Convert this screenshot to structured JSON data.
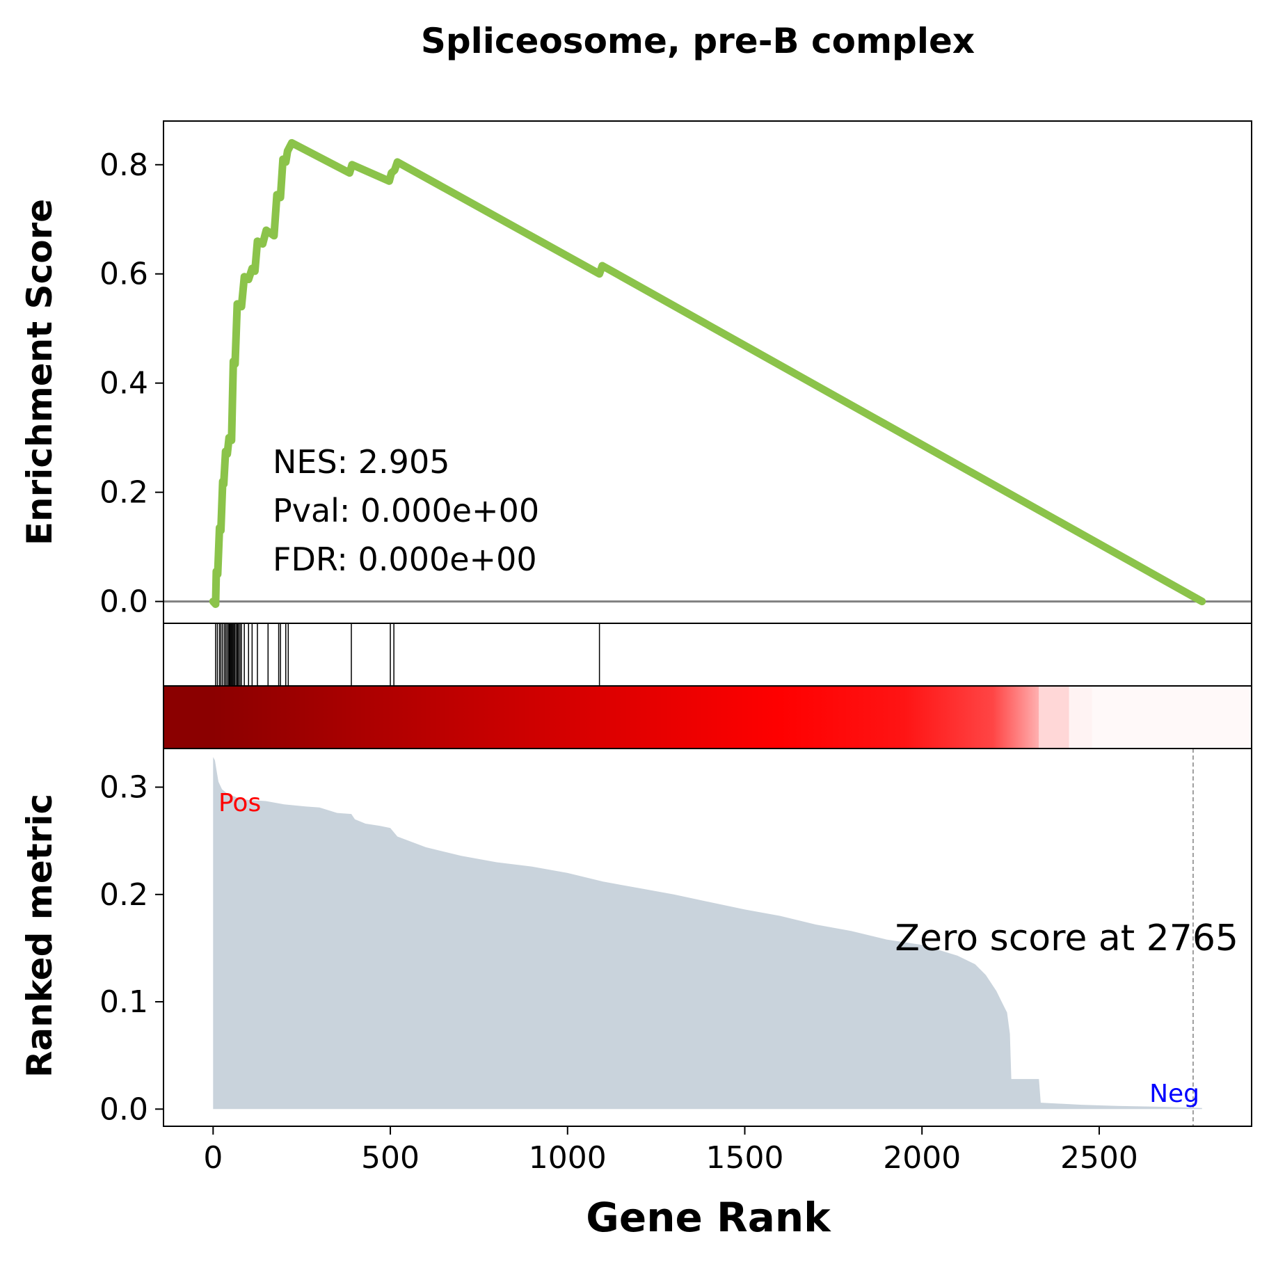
{
  "chart_data": {
    "type": "line",
    "title": "Spliceosome, pre-B complex",
    "xlabel": "Gene Rank",
    "ylabel_top": "Enrichment Score",
    "ylabel_bottom": "Ranked metric",
    "xlim": [
      -140,
      2930
    ],
    "x_ticks": [
      0,
      500,
      1000,
      1500,
      2000,
      2500
    ],
    "es_ylim": [
      -0.04,
      0.88
    ],
    "es_ticks": [
      0.0,
      0.2,
      0.4,
      0.6,
      0.8
    ],
    "metric_ylim": [
      -0.016,
      0.336
    ],
    "metric_ticks": [
      0.0,
      0.1,
      0.2,
      0.3
    ],
    "tick_decimals": 1,
    "stats": {
      "nes": "NES: 2.905",
      "pval": "Pval: 0.000e+00",
      "fdr": "FDR: 0.000e+00"
    },
    "zero_score_label": "Zero score at 2765",
    "zero_score_rank": 2765,
    "pos_label": "Pos",
    "neg_label": "Neg",
    "colors": {
      "es_line": "#8BC34A",
      "metric_fill": "#C9D3DC",
      "zero_line": "#808080",
      "pos_label": "#FF0000",
      "neg_label": "#0000FF",
      "dashed": "#808080"
    },
    "es_curve": {
      "x": [
        0,
        7,
        9,
        13,
        18,
        22,
        27,
        30,
        35,
        40,
        45,
        52,
        57,
        62,
        68,
        80,
        88,
        100,
        110,
        118,
        125,
        140,
        150,
        172,
        180,
        190,
        197,
        205,
        210,
        222,
        385,
        392,
        497,
        503,
        512,
        520,
        1090,
        1098,
        2790
      ],
      "y": [
        0.0,
        -0.005,
        0.055,
        0.05,
        0.135,
        0.13,
        0.22,
        0.215,
        0.275,
        0.27,
        0.3,
        0.295,
        0.44,
        0.435,
        0.545,
        0.54,
        0.595,
        0.59,
        0.61,
        0.605,
        0.66,
        0.655,
        0.68,
        0.67,
        0.745,
        0.74,
        0.81,
        0.805,
        0.825,
        0.84,
        0.785,
        0.8,
        0.77,
        0.785,
        0.79,
        0.805,
        0.6,
        0.615,
        0.0
      ]
    },
    "hits": [
      7,
      12,
      18,
      22,
      27,
      32,
      36,
      40,
      44,
      47,
      50,
      53,
      56,
      59,
      62,
      66,
      69,
      72,
      76,
      80,
      88,
      100,
      110,
      125,
      155,
      185,
      190,
      205,
      212,
      390,
      500,
      510,
      1090
    ],
    "heatmap": {
      "stops": [
        {
          "x": 0,
          "color": "#8B0000"
        },
        {
          "x": 700,
          "color": "#C00000"
        },
        {
          "x": 1600,
          "color": "#FF0000"
        },
        {
          "x": 1950,
          "color": "#FF1414"
        },
        {
          "x": 2200,
          "color": "#FF4545"
        },
        {
          "x": 2330,
          "color": "#FFB0B0"
        }
      ],
      "blocks": [
        {
          "x0": 2330,
          "x1": 2415,
          "color": "#FFD7D7"
        },
        {
          "x0": 2415,
          "x1": 2480,
          "color": "#FFF3F3"
        },
        {
          "x0": 2480,
          "x1": 2930,
          "color": "#FFF9F9"
        }
      ]
    },
    "ranked_metric": {
      "x": [
        0,
        5,
        10,
        15,
        25,
        40,
        70,
        100,
        150,
        200,
        260,
        300,
        350,
        390,
        400,
        430,
        470,
        500,
        520,
        600,
        700,
        800,
        900,
        1000,
        1100,
        1200,
        1300,
        1400,
        1500,
        1600,
        1700,
        1800,
        1900,
        2000,
        2050,
        2100,
        2150,
        2180,
        2210,
        2225,
        2240,
        2248,
        2252,
        2330,
        2335,
        2450,
        2550,
        2700,
        2790
      ],
      "y": [
        0.328,
        0.325,
        0.315,
        0.305,
        0.298,
        0.294,
        0.29,
        0.288,
        0.287,
        0.284,
        0.282,
        0.281,
        0.276,
        0.275,
        0.27,
        0.266,
        0.264,
        0.262,
        0.254,
        0.244,
        0.236,
        0.23,
        0.226,
        0.22,
        0.212,
        0.206,
        0.2,
        0.193,
        0.186,
        0.18,
        0.172,
        0.166,
        0.158,
        0.153,
        0.148,
        0.143,
        0.135,
        0.125,
        0.11,
        0.1,
        0.09,
        0.07,
        0.028,
        0.028,
        0.006,
        0.004,
        0.003,
        0.002,
        0.001
      ]
    }
  }
}
